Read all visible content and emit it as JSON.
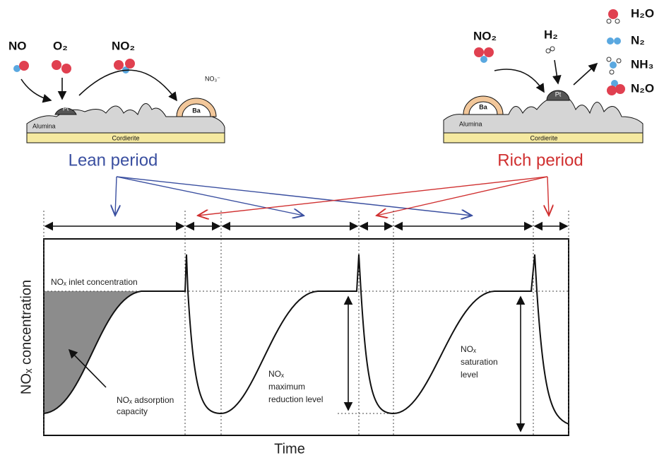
{
  "lean": {
    "molecules": [
      "NO",
      "O₂",
      "NO₂",
      "NO₃⁻"
    ],
    "pt": "Pt",
    "ba": "Ba",
    "alumina": "Alumina",
    "cordierite": "Cordierite",
    "period": "Lean period"
  },
  "rich": {
    "molecules": [
      "NO₂",
      "H₂"
    ],
    "products": [
      "H₂O",
      "N₂",
      "NH₃",
      "N₂O"
    ],
    "pt": "Pt",
    "ba": "Ba",
    "alumina": "Alumina",
    "cordierite": "Cordierite",
    "period": "Rich period"
  },
  "graph": {
    "y_label": "NOₓ concentration",
    "x_label": "Time",
    "inlet": "NOₓ inlet concentration",
    "adsorption": [
      "NOₓ adsorption",
      "capacity"
    ],
    "reduction": [
      "NOₓ",
      "maximum",
      "reduction level"
    ],
    "saturation": [
      "NOₓ",
      "saturation",
      "level"
    ]
  }
}
